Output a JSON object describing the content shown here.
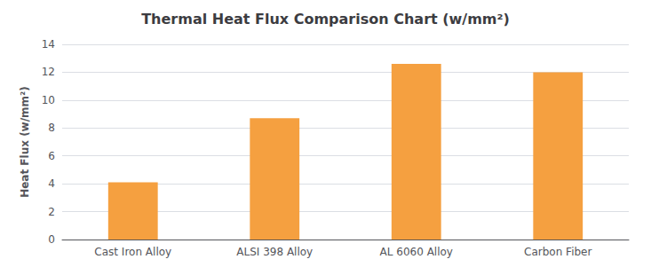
{
  "chart_data": {
    "type": "bar",
    "title": "Thermal Heat Flux Comparison Chart (w/mm²)",
    "categories": [
      "Cast Iron Alloy",
      "ALSI 398 Alloy",
      "AL 6060 Alloy",
      "Carbon Fiber"
    ],
    "values": [
      4.1,
      8.7,
      12.6,
      12.0
    ],
    "color": "#F5A040",
    "ylabel": "Heat Flux (w/mm²)",
    "ylim": [
      0,
      14
    ],
    "yticks": [
      0,
      2,
      4,
      6,
      8,
      10,
      12,
      14
    ],
    "grid": true
  }
}
